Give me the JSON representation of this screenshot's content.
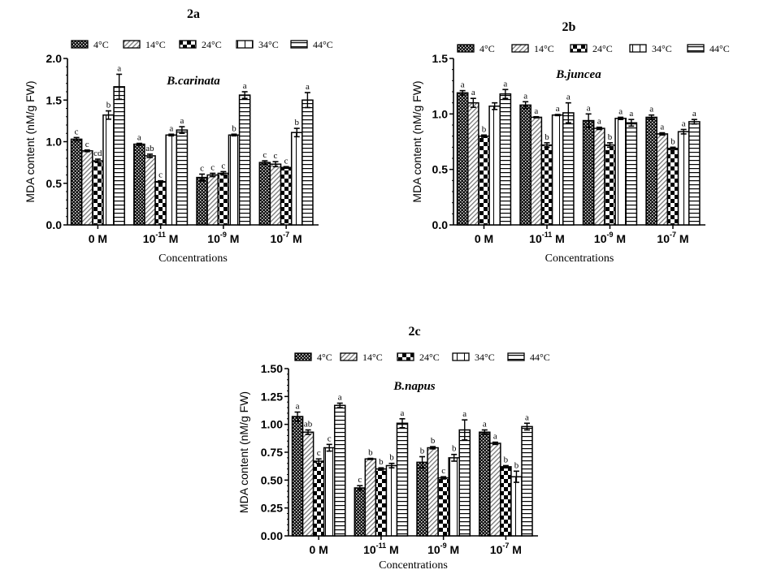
{
  "chart_data": [
    {
      "type": "bar",
      "panel": "2a",
      "title": "2a",
      "species": "B.carinata",
      "xlabel": "Concentrations",
      "ylabel": "MDA content (nM/g FW)",
      "ylim": [
        0,
        2.0
      ],
      "yticks": [
        "0.0",
        "0.5",
        "1.0",
        "1.5",
        "2.0"
      ],
      "ytick_values": [
        0,
        0.5,
        1.0,
        1.5,
        2.0
      ],
      "categories": [
        {
          "base": "0 M",
          "exp": ""
        },
        {
          "base": "10",
          "exp": "-11",
          "unit": " M"
        },
        {
          "base": "10",
          "exp": "-9",
          "unit": " M"
        },
        {
          "base": "10",
          "exp": "-7",
          "unit": " M"
        }
      ],
      "legend_position": "top",
      "series": [
        {
          "name": "4°C",
          "pattern": "dots",
          "values": [
            1.03,
            0.97,
            0.57,
            0.75
          ],
          "errors": [
            0.02,
            0.01,
            0.04,
            0.02
          ],
          "letters": [
            "c",
            "a",
            "c",
            "c"
          ]
        },
        {
          "name": "14°C",
          "pattern": "diagonal",
          "values": [
            0.89,
            0.83,
            0.6,
            0.73
          ],
          "errors": [
            0.01,
            0.02,
            0.02,
            0.03
          ],
          "letters": [
            "c",
            "ab",
            "c",
            "c"
          ]
        },
        {
          "name": "24°C",
          "pattern": "checker",
          "values": [
            0.77,
            0.52,
            0.62,
            0.69
          ],
          "errors": [
            0.02,
            0.01,
            0.02,
            0.01
          ],
          "letters": [
            "cd",
            "c",
            "c",
            "c"
          ]
        },
        {
          "name": "34°C",
          "pattern": "vertical",
          "values": [
            1.32,
            1.08,
            1.08,
            1.11
          ],
          "errors": [
            0.05,
            0.01,
            0.01,
            0.05
          ],
          "letters": [
            "b",
            "a",
            "b",
            "b"
          ]
        },
        {
          "name": "44°C",
          "pattern": "horizontal",
          "values": [
            1.66,
            1.14,
            1.56,
            1.5
          ],
          "errors": [
            0.15,
            0.04,
            0.04,
            0.09
          ],
          "letters": [
            "a",
            "a",
            "a",
            "a"
          ]
        }
      ]
    },
    {
      "type": "bar",
      "panel": "2b",
      "title": "2b",
      "species": "B.juncea",
      "xlabel": "Concentrations",
      "ylabel": "MDA content (nM/g FW)",
      "ylim": [
        0,
        1.5
      ],
      "yticks": [
        "0.0",
        "0.5",
        "1.0",
        "1.5"
      ],
      "ytick_values": [
        0,
        0.5,
        1.0,
        1.5
      ],
      "categories": [
        {
          "base": "0 M",
          "exp": ""
        },
        {
          "base": "10",
          "exp": "-11",
          "unit": " M"
        },
        {
          "base": "10",
          "exp": "-9",
          "unit": " M"
        },
        {
          "base": "10",
          "exp": "-7",
          "unit": " M"
        }
      ],
      "legend_position": "top",
      "series": [
        {
          "name": "4°C",
          "pattern": "dots",
          "values": [
            1.19,
            1.08,
            0.94,
            0.97
          ],
          "errors": [
            0.02,
            0.03,
            0.06,
            0.02
          ],
          "letters": [
            "a",
            "a",
            "a",
            "a"
          ]
        },
        {
          "name": "14°C",
          "pattern": "diagonal",
          "values": [
            1.1,
            0.97,
            0.87,
            0.82
          ],
          "errors": [
            0.04,
            0.005,
            0.01,
            0.01
          ],
          "letters": [
            "a",
            "a",
            "a",
            "a"
          ]
        },
        {
          "name": "24°C",
          "pattern": "checker",
          "values": [
            0.8,
            0.72,
            0.72,
            0.69
          ],
          "errors": [
            0.01,
            0.02,
            0.02,
            0.01
          ],
          "letters": [
            "b",
            "b",
            "b",
            "b"
          ]
        },
        {
          "name": "34°C",
          "pattern": "vertical",
          "values": [
            1.07,
            0.99,
            0.96,
            0.84
          ],
          "errors": [
            0.03,
            0.005,
            0.01,
            0.02
          ],
          "letters": [
            "",
            "a",
            "a",
            "a"
          ]
        },
        {
          "name": "44°C",
          "pattern": "horizontal",
          "values": [
            1.18,
            1.01,
            0.92,
            0.93
          ],
          "errors": [
            0.04,
            0.09,
            0.03,
            0.02
          ],
          "letters": [
            "a",
            "a",
            "a",
            "a"
          ]
        }
      ]
    },
    {
      "type": "bar",
      "panel": "2c",
      "title": "2c",
      "species": "B.napus",
      "xlabel": "Concentrations",
      "ylabel": "MDA content (nM/g FW)",
      "ylim": [
        0,
        1.5
      ],
      "yticks": [
        "0.00",
        "0.25",
        "0.50",
        "0.75",
        "1.00",
        "1.25",
        "1.50"
      ],
      "ytick_values": [
        0,
        0.25,
        0.5,
        0.75,
        1.0,
        1.25,
        1.5
      ],
      "categories": [
        {
          "base": "0 M",
          "exp": ""
        },
        {
          "base": "10",
          "exp": "-11",
          "unit": " M"
        },
        {
          "base": "10",
          "exp": "-9",
          "unit": " M"
        },
        {
          "base": "10",
          "exp": "-7",
          "unit": " M"
        }
      ],
      "legend_position": "top",
      "series": [
        {
          "name": "4°C",
          "pattern": "dots",
          "values": [
            1.07,
            0.43,
            0.66,
            0.93
          ],
          "errors": [
            0.04,
            0.02,
            0.05,
            0.02
          ],
          "letters": [
            "a",
            "c",
            "b",
            "a"
          ]
        },
        {
          "name": "14°C",
          "pattern": "diagonal",
          "values": [
            0.93,
            0.69,
            0.79,
            0.83
          ],
          "errors": [
            0.02,
            0.005,
            0.01,
            0.01
          ],
          "letters": [
            "ab",
            "b",
            "b",
            "a"
          ]
        },
        {
          "name": "24°C",
          "pattern": "checker",
          "values": [
            0.67,
            0.6,
            0.52,
            0.62
          ],
          "errors": [
            0.02,
            0.01,
            0.01,
            0.01
          ],
          "letters": [
            "c",
            "b",
            "c",
            "b"
          ]
        },
        {
          "name": "34°C",
          "pattern": "vertical",
          "values": [
            0.79,
            0.63,
            0.7,
            0.53
          ],
          "errors": [
            0.03,
            0.02,
            0.03,
            0.05
          ],
          "letters": [
            "c",
            "b",
            "b",
            "b"
          ]
        },
        {
          "name": "44°C",
          "pattern": "horizontal",
          "values": [
            1.17,
            1.01,
            0.95,
            0.98
          ],
          "errors": [
            0.02,
            0.04,
            0.09,
            0.03
          ],
          "letters": [
            "a",
            "a",
            "a",
            "a"
          ]
        }
      ]
    }
  ]
}
